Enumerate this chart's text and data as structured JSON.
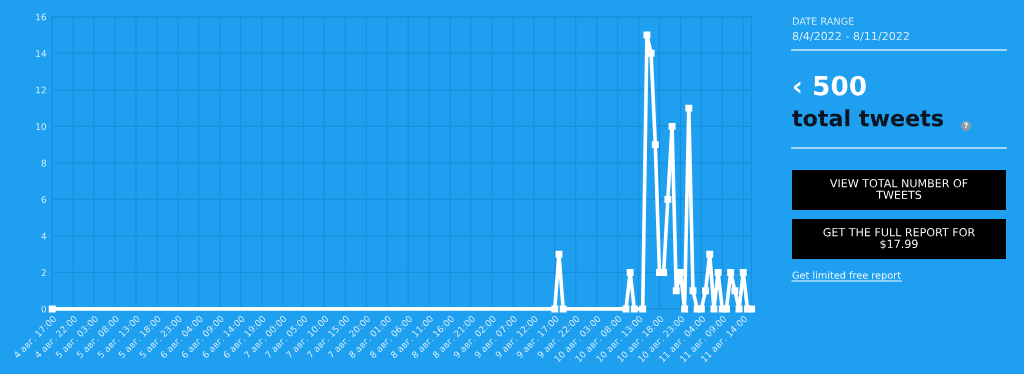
{
  "chart_data": [
    {
      "type": "line",
      "marker": "square",
      "line_style": "solid",
      "grid": true,
      "series": [
        {
          "color": "#ffffff",
          "x": [
            "2022-08-04T17:00",
            "2022-08-09T17:00",
            "2022-08-09T18:00",
            "2022-08-09T19:00",
            "2022-08-10T10:00",
            "2022-08-10T11:00",
            "2022-08-10T12:00",
            "2022-08-10T14:00",
            "2022-08-10T15:00",
            "2022-08-10T16:00",
            "2022-08-10T17:00",
            "2022-08-10T18:00",
            "2022-08-10T19:00",
            "2022-08-10T20:00",
            "2022-08-10T21:00",
            "2022-08-10T22:00",
            "2022-08-10T23:00",
            "2022-08-11T00:00",
            "2022-08-11T01:00",
            "2022-08-11T02:00",
            "2022-08-11T03:00",
            "2022-08-11T04:00",
            "2022-08-11T05:00",
            "2022-08-11T06:00",
            "2022-08-11T07:00",
            "2022-08-11T08:00",
            "2022-08-11T09:00",
            "2022-08-11T10:00",
            "2022-08-11T11:00",
            "2022-08-11T12:00",
            "2022-08-11T13:00",
            "2022-08-11T14:00",
            "2022-08-11T15:00",
            "2022-08-11T16:00"
          ],
          "values": [
            0,
            0,
            3,
            0,
            0,
            2,
            0,
            0,
            15,
            14,
            9,
            2,
            2,
            6,
            10,
            1,
            2,
            0,
            11,
            1,
            0,
            0,
            1,
            3,
            0,
            2,
            0,
            0,
            2,
            1,
            0,
            2,
            0,
            0
          ]
        }
      ],
      "xlim": [
        "2022-08-04T17:00",
        "2022-08-11T16:00"
      ],
      "ylim": [
        0,
        16
      ],
      "yticks": [
        0,
        2,
        4,
        6,
        8,
        10,
        12,
        14,
        16
      ],
      "xticks": [
        {
          "value": "2022-08-04T17:00",
          "label": "4 авг. 17:00"
        },
        {
          "value": "2022-08-04T22:00",
          "label": "4 авг. 22:00"
        },
        {
          "value": "2022-08-05T03:00",
          "label": "5 авг. 03:00"
        },
        {
          "value": "2022-08-05T08:00",
          "label": "5 авг. 08:00"
        },
        {
          "value": "2022-08-05T13:00",
          "label": "5 авг. 13:00"
        },
        {
          "value": "2022-08-05T18:00",
          "label": "5 авг. 18:00"
        },
        {
          "value": "2022-08-05T23:00",
          "label": "5 авг. 23:00"
        },
        {
          "value": "2022-08-06T04:00",
          "label": "6 авг. 04:00"
        },
        {
          "value": "2022-08-06T09:00",
          "label": "6 авг. 09:00"
        },
        {
          "value": "2022-08-06T14:00",
          "label": "6 авг. 14:00"
        },
        {
          "value": "2022-08-06T19:00",
          "label": "6 авг. 19:00"
        },
        {
          "value": "2022-08-07T00:00",
          "label": "7 авг. 00:00"
        },
        {
          "value": "2022-08-07T05:00",
          "label": "7 авг. 05:00"
        },
        {
          "value": "2022-08-07T10:00",
          "label": "7 авг. 10:00"
        },
        {
          "value": "2022-08-07T15:00",
          "label": "7 авг. 15:00"
        },
        {
          "value": "2022-08-07T20:00",
          "label": "7 авг. 20:00"
        },
        {
          "value": "2022-08-08T01:00",
          "label": "8 авг. 01:00"
        },
        {
          "value": "2022-08-08T06:00",
          "label": "8 авг. 06:00"
        },
        {
          "value": "2022-08-08T11:00",
          "label": "8 авг. 11:00"
        },
        {
          "value": "2022-08-08T16:00",
          "label": "8 авг. 16:00"
        },
        {
          "value": "2022-08-08T21:00",
          "label": "8 авг. 21:00"
        },
        {
          "value": "2022-08-09T02:00",
          "label": "9 авг. 02:00"
        },
        {
          "value": "2022-08-09T07:00",
          "label": "9 авг. 07:00"
        },
        {
          "value": "2022-08-09T12:00",
          "label": "9 авг. 12:00"
        },
        {
          "value": "2022-08-09T17:00",
          "label": "9 авг. 17:00"
        },
        {
          "value": "2022-08-09T22:00",
          "label": "9 авг. 22:00"
        },
        {
          "value": "2022-08-10T03:00",
          "label": "10 авг. 03:00"
        },
        {
          "value": "2022-08-10T08:00",
          "label": "10 авг. 08:00"
        },
        {
          "value": "2022-08-10T13:00",
          "label": "10 авг. 13:00"
        },
        {
          "value": "2022-08-10T18:00",
          "label": "10 авг. 18:00"
        },
        {
          "value": "2022-08-10T23:00",
          "label": "10 авг. 23:00"
        },
        {
          "value": "2022-08-11T04:00",
          "label": "11 авг. 04:00"
        },
        {
          "value": "2022-08-11T09:00",
          "label": "11 авг. 09:00"
        },
        {
          "value": "2022-08-11T14:00",
          "label": "11 авг. 14:00"
        }
      ]
    },
    {
      "type": "other",
      "annotations": [
        "DATE RANGE",
        "8/4/2022 - 8/11/2022",
        "‹ 500",
        "total tweets",
        "?",
        "VIEW TOTAL NUMBER OF\nTWEETS",
        "GET THE FULL REPORT FOR\n$17.99",
        "Get limited free report"
      ]
    }
  ]
}
